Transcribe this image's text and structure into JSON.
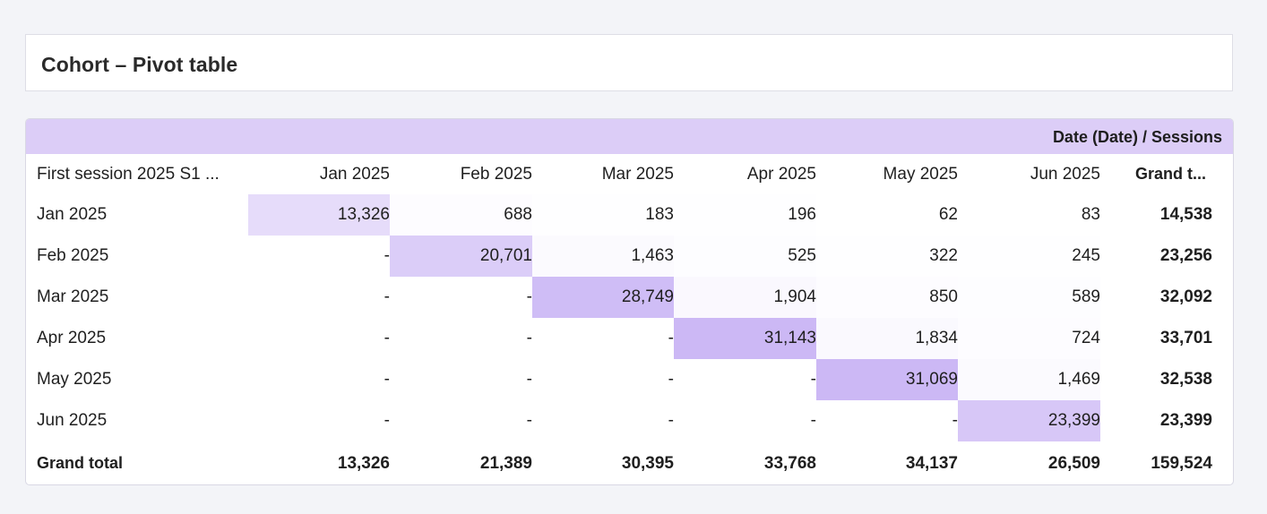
{
  "title": "Cohort – Pivot table",
  "column_dimension": "Date (Date) / Sessions",
  "row_dimension": "First session 2025 S1 ...",
  "columns": [
    "Jan 2025",
    "Feb 2025",
    "Mar 2025",
    "Apr 2025",
    "May 2025",
    "Jun 2025"
  ],
  "grand_total_header": "Grand t...",
  "rows": [
    {
      "label": "Jan 2025",
      "cells": [
        "13,326",
        "688",
        "183",
        "196",
        "62",
        "83"
      ],
      "total": "14,538"
    },
    {
      "label": "Feb 2025",
      "cells": [
        "-",
        "20,701",
        "1,463",
        "525",
        "322",
        "245"
      ],
      "total": "23,256"
    },
    {
      "label": "Mar 2025",
      "cells": [
        "-",
        "-",
        "28,749",
        "1,904",
        "850",
        "589"
      ],
      "total": "32,092"
    },
    {
      "label": "Apr 2025",
      "cells": [
        "-",
        "-",
        "-",
        "31,143",
        "1,834",
        "724"
      ],
      "total": "33,701"
    },
    {
      "label": "May 2025",
      "cells": [
        "-",
        "-",
        "-",
        "-",
        "31,069",
        "1,469"
      ],
      "total": "32,538"
    },
    {
      "label": "Jun 2025",
      "cells": [
        "-",
        "-",
        "-",
        "-",
        "-",
        "23,399"
      ],
      "total": "23,399"
    }
  ],
  "grand_total_row": {
    "label": "Grand total",
    "cells": [
      "13,326",
      "21,389",
      "30,395",
      "33,768",
      "34,137",
      "26,509"
    ],
    "total": "159,524"
  },
  "heatmap": {
    "color_high": "#ccb8f5",
    "color_low": "#ffffff",
    "max_value": 31143
  }
}
